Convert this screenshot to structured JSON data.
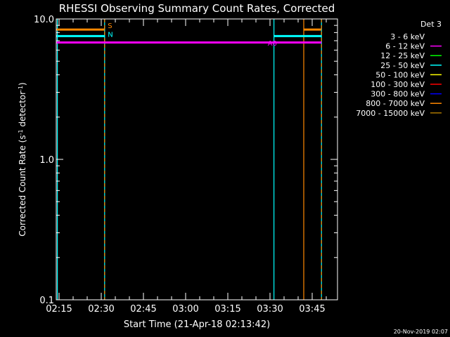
{
  "chart_data": {
    "type": "line",
    "title": "RHESSI Observing Summary Count Rates, Corrected",
    "xlabel": "Start Time (21-Apr-18 02:13:42)",
    "ylabel_parts": [
      "Corrected Count Rate (s",
      "-1",
      " detector",
      "-1",
      ")"
    ],
    "y_scale": "log",
    "ylim": [
      0.1,
      10.0
    ],
    "y_ticks": [
      {
        "value": 0.1,
        "label": "0.1"
      },
      {
        "value": 1.0,
        "label": "1.0"
      },
      {
        "value": 10.0,
        "label": "10.0"
      }
    ],
    "x_range_min": [
      134.0,
      234.0
    ],
    "x_ticks": [
      {
        "value": 135,
        "label": "02:15"
      },
      {
        "value": 150,
        "label": "02:30"
      },
      {
        "value": 165,
        "label": "02:45"
      },
      {
        "value": 180,
        "label": "03:00"
      },
      {
        "value": 195,
        "label": "03:15"
      },
      {
        "value": 210,
        "label": "03:30"
      },
      {
        "value": 225,
        "label": "03:45"
      }
    ],
    "legend_title": "Det 3",
    "legend": [
      {
        "label": "3 - 6 keV",
        "color": "#000000"
      },
      {
        "label": "6 - 12 keV",
        "color": "#ff00ff"
      },
      {
        "label": "12 - 25 keV",
        "color": "#00ff00"
      },
      {
        "label": "25 - 50 keV",
        "color": "#00ffff"
      },
      {
        "label": "50 - 100 keV",
        "color": "#ffff00"
      },
      {
        "label": "100 - 300 keV",
        "color": "#ff0000"
      },
      {
        "label": "300 - 800 keV",
        "color": "#0000ff"
      },
      {
        "label": "800 - 7000 keV",
        "color": "#ff8800"
      },
      {
        "label": "7000 - 15000 keV",
        "color": "#aa7700"
      }
    ],
    "series": [
      {
        "color": "#ff8800",
        "segments": [
          [
            [
              134.0,
              8.4
            ],
            [
              151.2,
              8.4
            ]
          ],
          [
            [
              222.0,
              8.4
            ],
            [
              228.3,
              8.4
            ]
          ]
        ]
      },
      {
        "color": "#00ffff",
        "segments": [
          [
            [
              134.0,
              7.55
            ],
            [
              151.2,
              7.55
            ]
          ],
          [
            [
              211.4,
              7.55
            ],
            [
              228.3,
              7.55
            ]
          ]
        ]
      },
      {
        "color": "#ff00ff",
        "segments": [
          [
            [
              134.0,
              6.8
            ],
            [
              228.3,
              6.8
            ]
          ]
        ]
      }
    ],
    "vlines": [
      {
        "x": 134.4,
        "color": "#00ffff",
        "style": "solid"
      },
      {
        "x": 151.2,
        "color": "#00ffff",
        "style": "solid"
      },
      {
        "x": 151.2,
        "color": "#ff8800",
        "style": "dashed"
      },
      {
        "x": 211.4,
        "color": "#00ffff",
        "style": "solid"
      },
      {
        "x": 222.0,
        "color": "#ff8800",
        "style": "solid"
      },
      {
        "x": 228.3,
        "color": "#00ffff",
        "style": "solid"
      },
      {
        "x": 228.3,
        "color": "#ff8800",
        "style": "dashed"
      }
    ],
    "annotations": [
      {
        "text": "S",
        "x": 152.3,
        "y": 9.0,
        "color": "#ff8800"
      },
      {
        "text": "N",
        "x": 152.3,
        "y": 7.8,
        "color": "#00ffff"
      },
      {
        "text": "A0",
        "x": 209.2,
        "y": 6.75,
        "color": "#ff00ff"
      }
    ]
  },
  "footer": {
    "date": "20-Nov-2019 02:07"
  }
}
